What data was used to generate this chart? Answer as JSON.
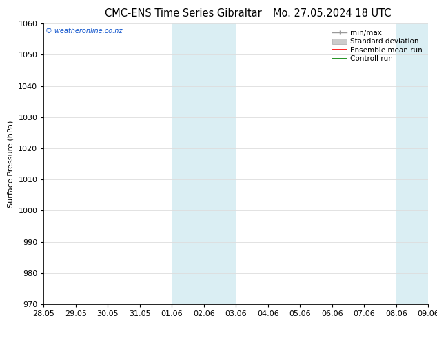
{
  "title_left": "CMC-ENS Time Series Gibraltar",
  "title_right": "Mo. 27.05.2024 18 UTC",
  "ylabel": "Surface Pressure (hPa)",
  "watermark": "© weatheronline.co.nz",
  "ylim": [
    970,
    1060
  ],
  "yticks": [
    970,
    980,
    990,
    1000,
    1010,
    1020,
    1030,
    1040,
    1050,
    1060
  ],
  "xtick_labels": [
    "28.05",
    "29.05",
    "30.05",
    "31.05",
    "01.06",
    "02.06",
    "03.06",
    "04.06",
    "05.06",
    "06.06",
    "07.06",
    "08.06",
    "09.06"
  ],
  "xtick_positions": [
    0,
    1,
    2,
    3,
    4,
    5,
    6,
    7,
    8,
    9,
    10,
    11,
    12
  ],
  "shaded_bands": [
    {
      "x_start": 4,
      "x_end": 5,
      "color": "#daeef3"
    },
    {
      "x_start": 5,
      "x_end": 6,
      "color": "#daeef3"
    },
    {
      "x_start": 11,
      "x_end": 12,
      "color": "#daeef3"
    }
  ],
  "legend_entries": [
    {
      "label": "min/max",
      "color": "#999999"
    },
    {
      "label": "Standard deviation",
      "color": "#cccccc"
    },
    {
      "label": "Ensemble mean run",
      "color": "red"
    },
    {
      "label": "Controll run",
      "color": "green"
    }
  ],
  "background_color": "#ffffff",
  "plot_bg_color": "#ffffff",
  "grid_color": "#dddddd",
  "title_fontsize": 10.5,
  "ylabel_fontsize": 8,
  "tick_fontsize": 8,
  "legend_fontsize": 7.5,
  "watermark_fontsize": 7,
  "watermark_color": "#1155cc"
}
